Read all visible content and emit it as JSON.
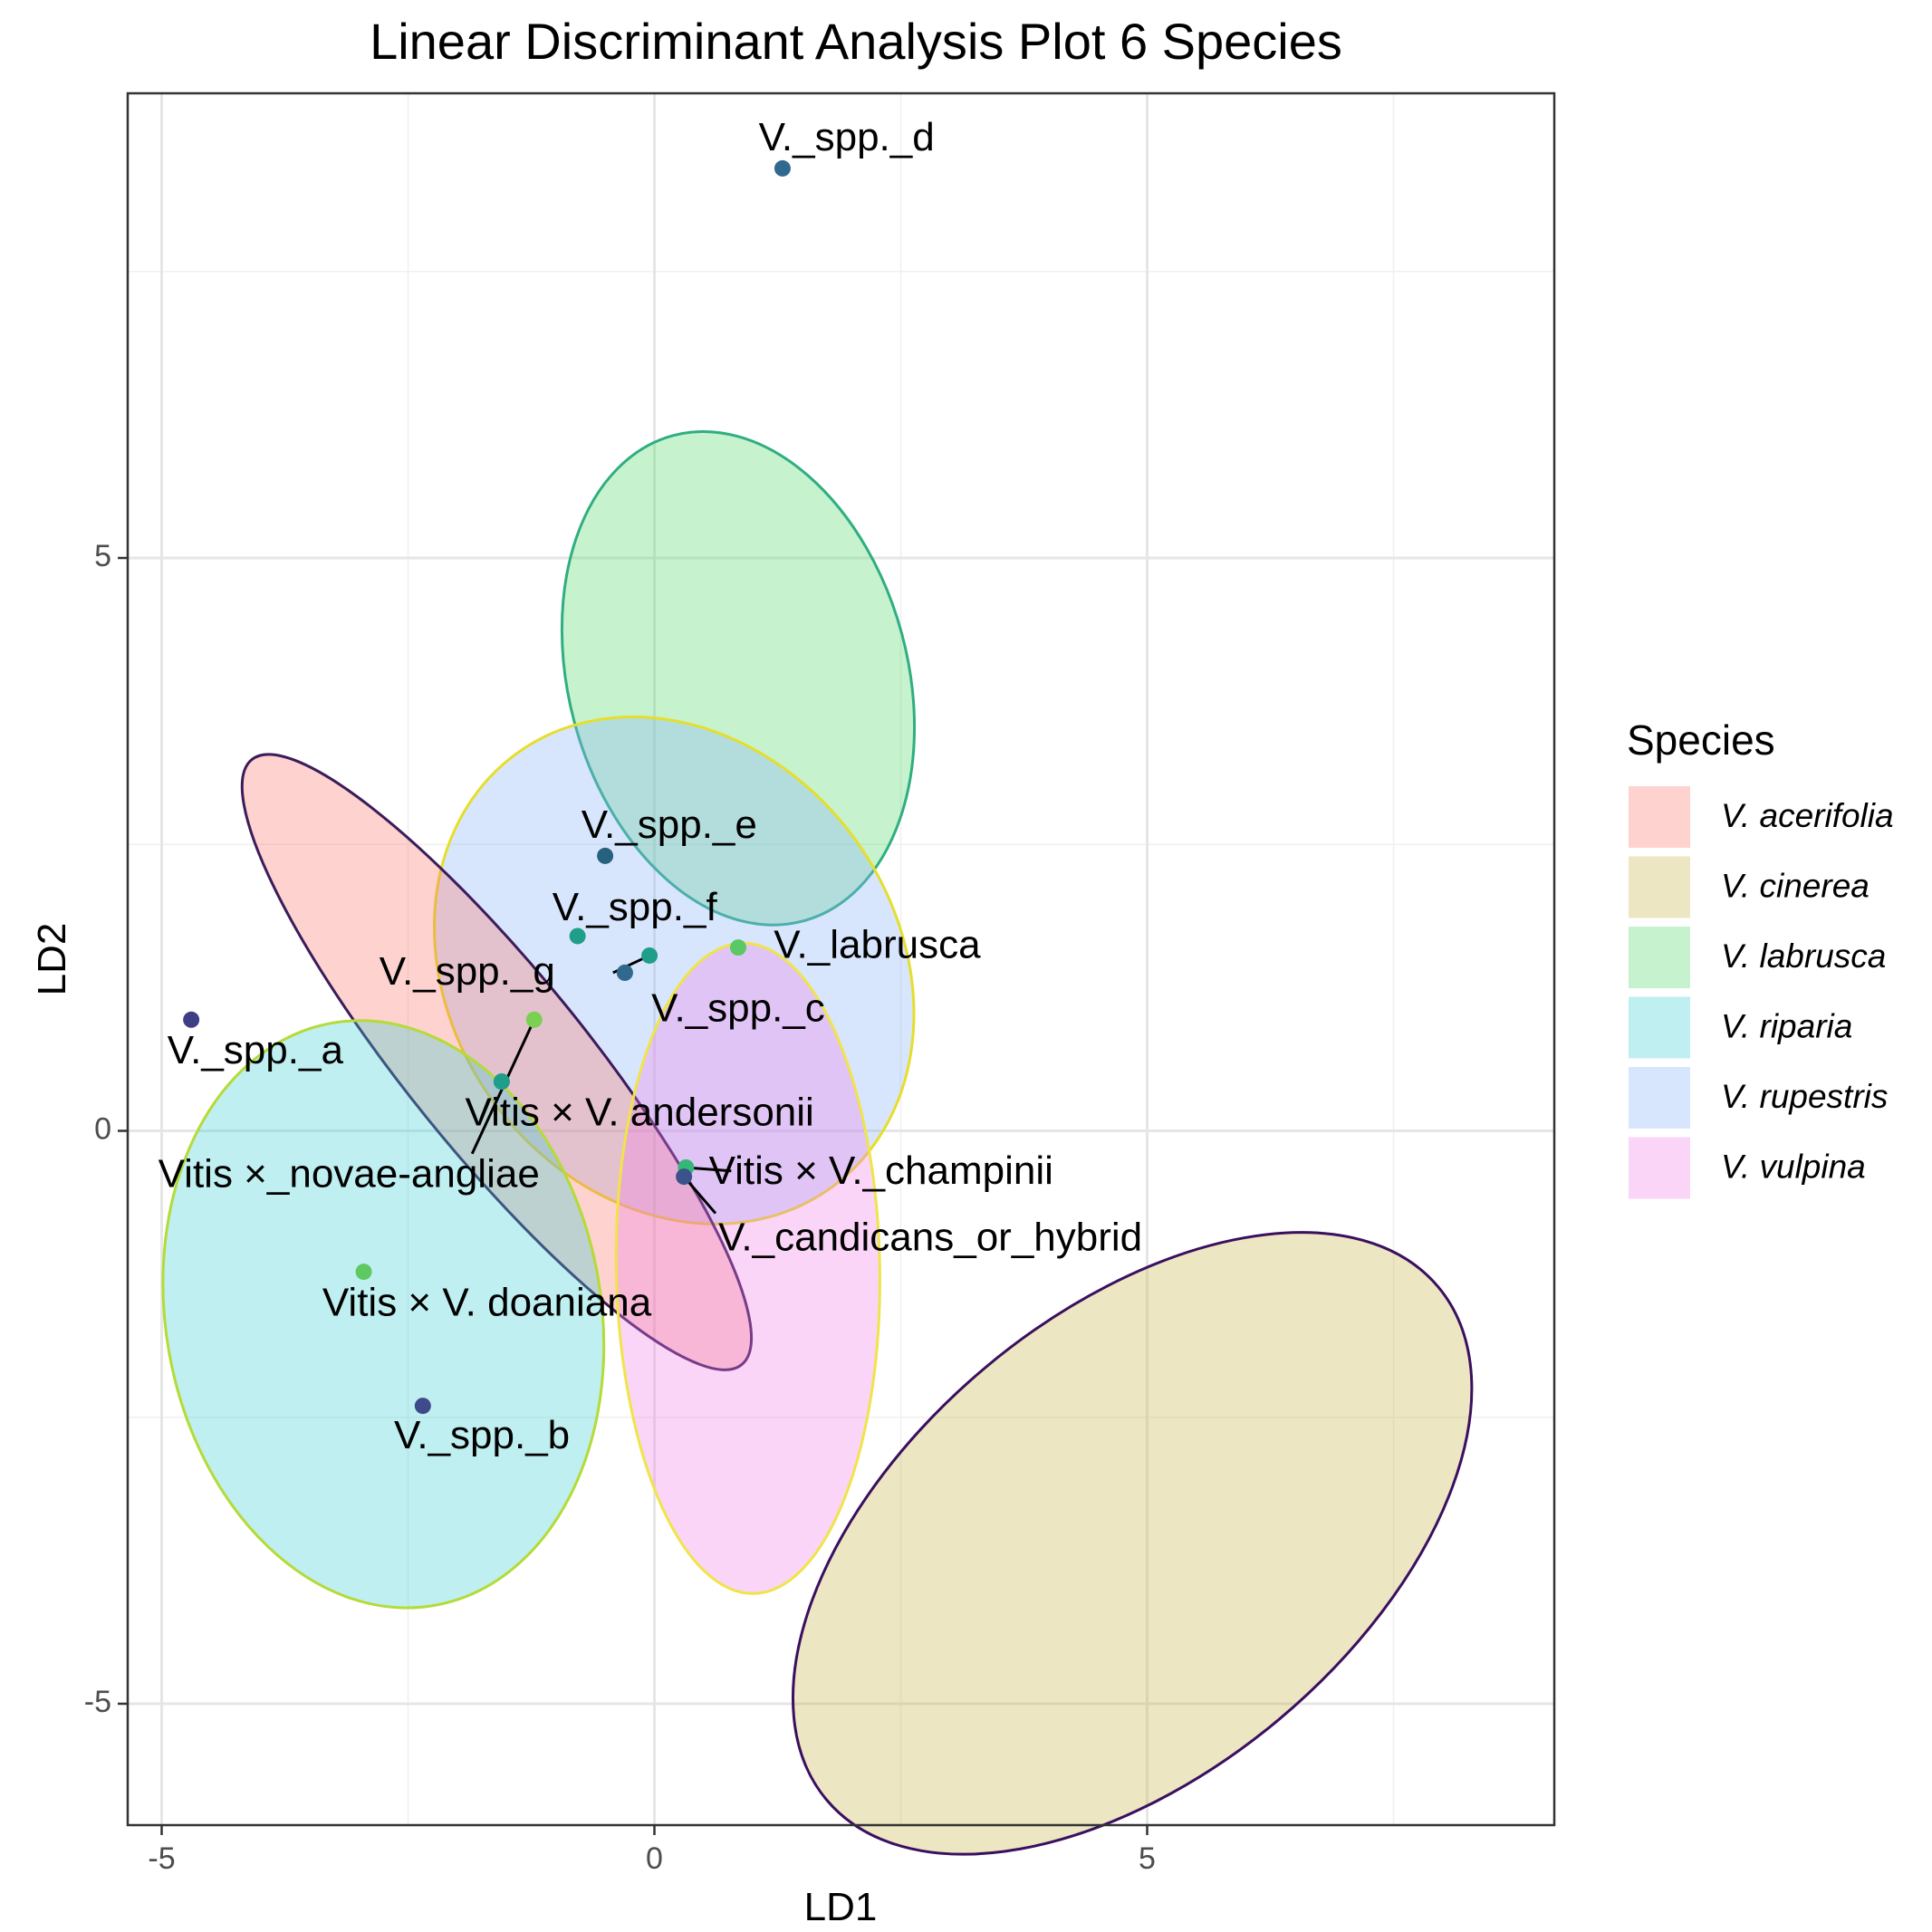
{
  "chart_data": {
    "type": "scatter",
    "title": "Linear Discriminant Analysis Plot 6 Species",
    "xlabel": "LD1",
    "ylabel": "LD2",
    "xlim": [
      -5.3,
      9.2
    ],
    "ylim": [
      -6.0,
      9.1
    ],
    "x_major_ticks": [
      -5,
      0,
      5
    ],
    "x_minor_ticks": [
      -2.5,
      2.5,
      7.5
    ],
    "y_major_ticks": [
      -5,
      0,
      5
    ],
    "y_minor_ticks": [
      -2.5,
      2.5,
      7.5
    ],
    "grid": true,
    "legend": {
      "title": "Species",
      "placement": "right",
      "entries": [
        {
          "name": "V. acerifolia",
          "fill": "#F8766D"
        },
        {
          "name": "V. cinerea",
          "fill": "#C6B647"
        },
        {
          "name": "V. labrusca",
          "fill": "#53D86A"
        },
        {
          "name": "V. riparia",
          "fill": "#3CCFD0"
        },
        {
          "name": "V. rupestris",
          "fill": "#8AB4F8"
        },
        {
          "name": "V. vulpina",
          "fill": "#F17FE8"
        }
      ]
    },
    "ellipses": [
      {
        "species": "V. cinerea",
        "cx": 4.85,
        "cy": -3.6,
        "rx": 4.05,
        "ry": 2.0,
        "angle": -40,
        "fill": "#C6B647",
        "stroke": "#3A0F5F"
      },
      {
        "species": "V. labrusca",
        "cx": 0.85,
        "cy": 3.95,
        "rx": 2.55,
        "ry": 1.48,
        "angle": 75,
        "fill": "#53D86A",
        "stroke": "#2FAE80"
      },
      {
        "species": "V. rupestris",
        "cx": 0.2,
        "cy": 1.4,
        "rx": 2.72,
        "ry": 1.95,
        "angle": 54,
        "fill": "#8AB4F8",
        "stroke": "#E6DE2C"
      },
      {
        "species": "V. acerifolia",
        "cx": -1.6,
        "cy": 0.6,
        "rx": 3.95,
        "ry": 0.78,
        "angle": 51,
        "fill": "#F8766D",
        "stroke": "#3B1C5A"
      },
      {
        "species": "V. vulpina",
        "cx": 0.95,
        "cy": -1.2,
        "rx": 3.3,
        "ry": 1.15,
        "angle": 89,
        "fill": "#F17FE8",
        "stroke": "#F0E44A"
      },
      {
        "species": "V. riparia",
        "cx": -2.75,
        "cy": -1.6,
        "rx": 3.0,
        "ry": 1.9,
        "angle": 80,
        "fill": "#3CCFD0",
        "stroke": "#B4DB36"
      }
    ],
    "points": [
      {
        "label": "V._spp._d",
        "x": 1.3,
        "y": 8.4,
        "color": "#31688E",
        "lx": 1.95,
        "ly": 8.65
      },
      {
        "label": "V._spp._e",
        "x": -0.5,
        "y": 2.4,
        "color": "#26617E",
        "lx": 0.15,
        "ly": 2.65
      },
      {
        "label": "V._spp._f",
        "x": -0.78,
        "y": 1.7,
        "color": "#1F9E89",
        "lx": -0.2,
        "ly": 1.93
      },
      {
        "label": "V._labrusca",
        "x": 0.85,
        "y": 1.6,
        "color": "#5BC863",
        "lx": 2.26,
        "ly": 1.6
      },
      {
        "label": "V._spp._g",
        "x": -0.05,
        "y": 1.53,
        "color": "#1F9E89",
        "lx": -1.9,
        "ly": 1.37
      },
      {
        "label": "",
        "x": -0.3,
        "y": 1.38,
        "color": "#31688E",
        "lx": null,
        "ly": null
      },
      {
        "label": "V._spp._c",
        "x": -0.3,
        "y": 1.38,
        "color": "#31688E",
        "lx": 0.85,
        "ly": 1.05
      },
      {
        "label": "V._spp._a",
        "x": -4.7,
        "y": 0.97,
        "color": "#3E3D86",
        "lx": -4.05,
        "ly": 0.68
      },
      {
        "label": "Vitis × V. andersonii",
        "x": -1.22,
        "y": 0.97,
        "color": "#7AD151",
        "lx": -0.15,
        "ly": 0.14
      },
      {
        "label": "",
        "x": -1.55,
        "y": 0.43,
        "color": "#1F9E89",
        "lx": null,
        "ly": null
      },
      {
        "label": "Vitis ×_novae-angliae",
        "x": -1.55,
        "y": 0.43,
        "color": "#1F9E89",
        "lx": -3.1,
        "ly": -0.4
      },
      {
        "label": "Vitis × V._champinii",
        "x": 0.32,
        "y": -0.32,
        "color": "#35B779",
        "lx": 2.3,
        "ly": -0.37
      },
      {
        "label": "V._candicans_or_hybrid",
        "x": 0.3,
        "y": -0.4,
        "color": "#3B528B",
        "lx": 2.8,
        "ly": -0.95
      },
      {
        "label": "Vitis × V. doaniana",
        "x": -2.95,
        "y": -1.23,
        "color": "#5EC962",
        "lx": -1.7,
        "ly": -1.52
      },
      {
        "label": "V._spp._b",
        "x": -2.35,
        "y": -2.4,
        "color": "#3E4A89",
        "lx": -1.75,
        "ly": -2.68
      }
    ],
    "leaders": [
      {
        "from": [
          -0.05,
          1.53
        ],
        "to": [
          -0.42,
          1.38
        ]
      },
      {
        "from": [
          -1.22,
          0.97
        ],
        "to": [
          -1.85,
          -0.2
        ]
      },
      {
        "from": [
          0.32,
          -0.32
        ],
        "to": [
          0.78,
          -0.35
        ]
      },
      {
        "from": [
          0.3,
          -0.4
        ],
        "to": [
          0.62,
          -0.72
        ]
      }
    ]
  }
}
